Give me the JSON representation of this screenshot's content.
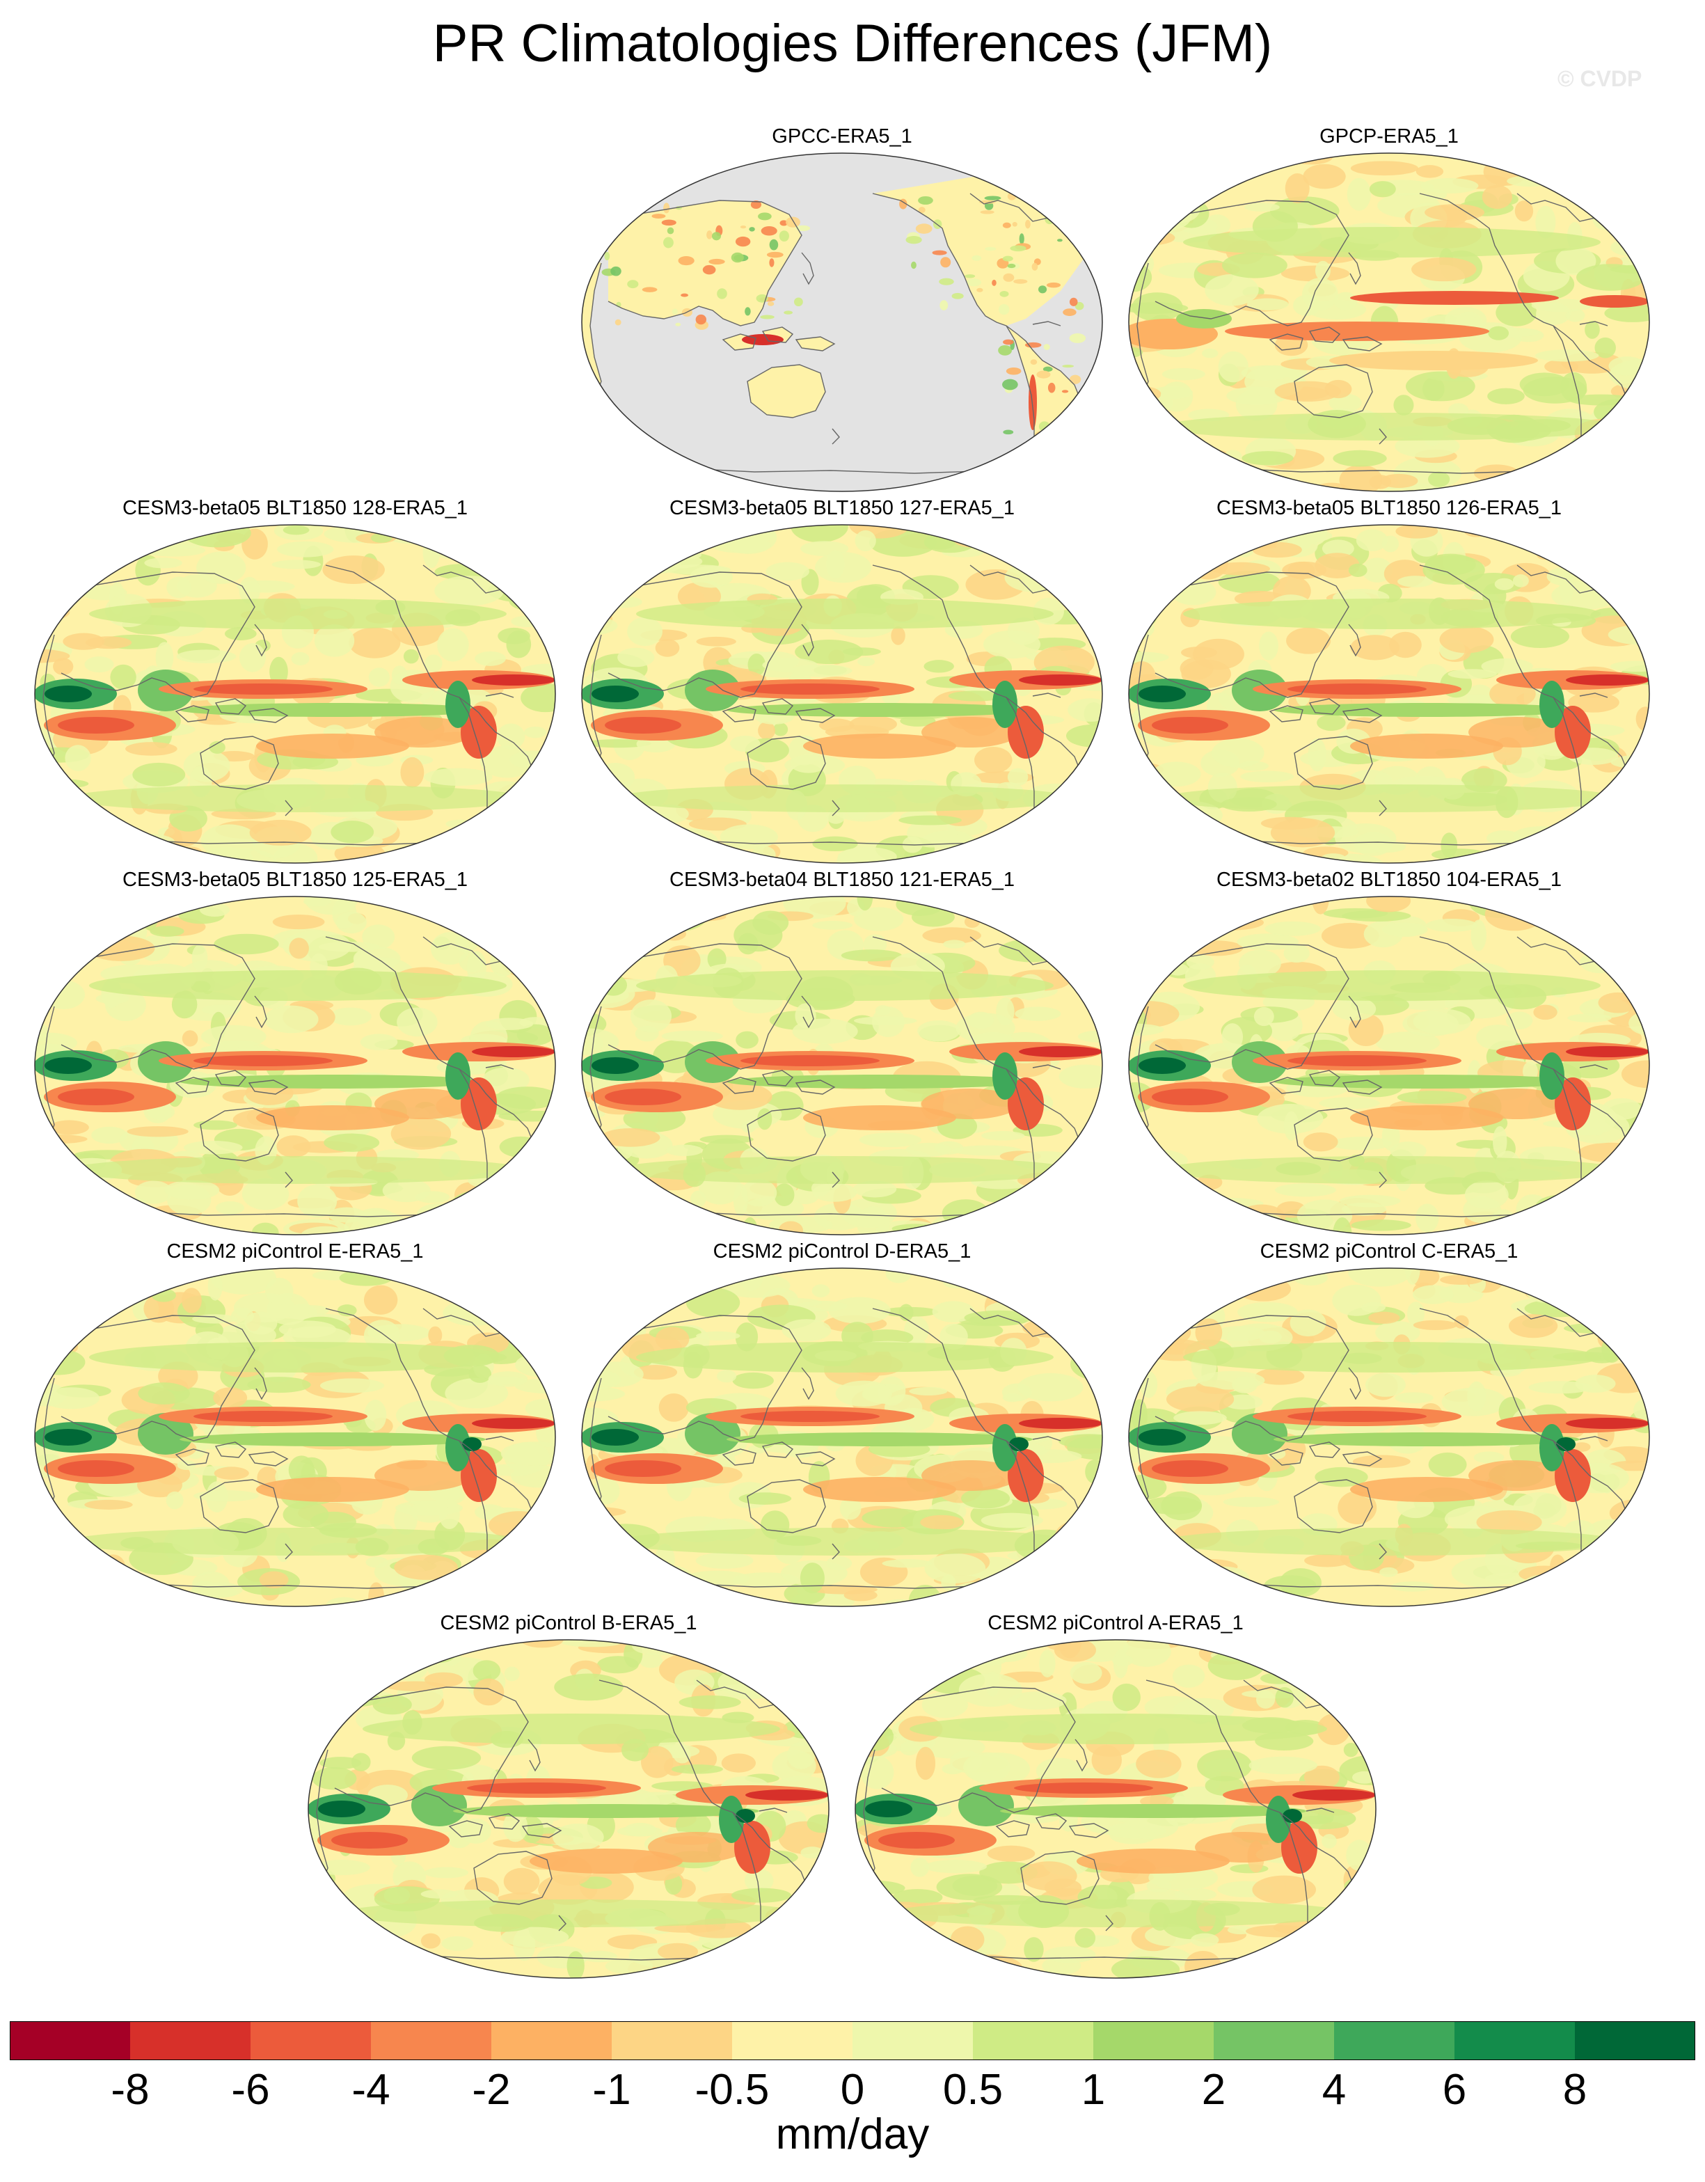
{
  "title": "PR Climatologies Differences (JFM)",
  "watermark": "© CVDP",
  "panels": [
    {
      "label": "GPCC-ERA5_1",
      "type": "land-only"
    },
    {
      "label": "GPCP-ERA5_1",
      "type": "obs"
    },
    {
      "label": "CESM3-beta05 BLT1850 128-ERA5_1",
      "type": "model"
    },
    {
      "label": "CESM3-beta05 BLT1850 127-ERA5_1",
      "type": "model"
    },
    {
      "label": "CESM3-beta05 BLT1850 126-ERA5_1",
      "type": "model"
    },
    {
      "label": "CESM3-beta05 BLT1850 125-ERA5_1",
      "type": "model"
    },
    {
      "label": "CESM3-beta04 BLT1850 121-ERA5_1",
      "type": "model"
    },
    {
      "label": "CESM3-beta02 BLT1850 104-ERA5_1",
      "type": "model"
    },
    {
      "label": "CESM2 piControl E-ERA5_1",
      "type": "model2"
    },
    {
      "label": "CESM2 piControl D-ERA5_1",
      "type": "model2"
    },
    {
      "label": "CESM2 piControl C-ERA5_1",
      "type": "model2"
    },
    {
      "label": "CESM2 piControl B-ERA5_1",
      "type": "model2"
    },
    {
      "label": "CESM2 piControl A-ERA5_1",
      "type": "model2"
    }
  ],
  "colorbar": {
    "units": "mm/day",
    "colors": [
      "#a50026",
      "#d7302a",
      "#ec5b3b",
      "#f7864e",
      "#fdb163",
      "#fdd585",
      "#fef2a8",
      "#eef7ac",
      "#cfeb85",
      "#a5d86a",
      "#75c465",
      "#3ea85a",
      "#138c4b",
      "#006837"
    ],
    "tick_labels": [
      "-8",
      "-6",
      "-4",
      "-2",
      "-1",
      "-0.5",
      "0",
      "0.5",
      "1",
      "2",
      "4",
      "6",
      "8"
    ]
  },
  "colors": {
    "missing": "#e3e3e3",
    "coast": "#666666",
    "ocean_base": "#fbf0b0"
  }
}
